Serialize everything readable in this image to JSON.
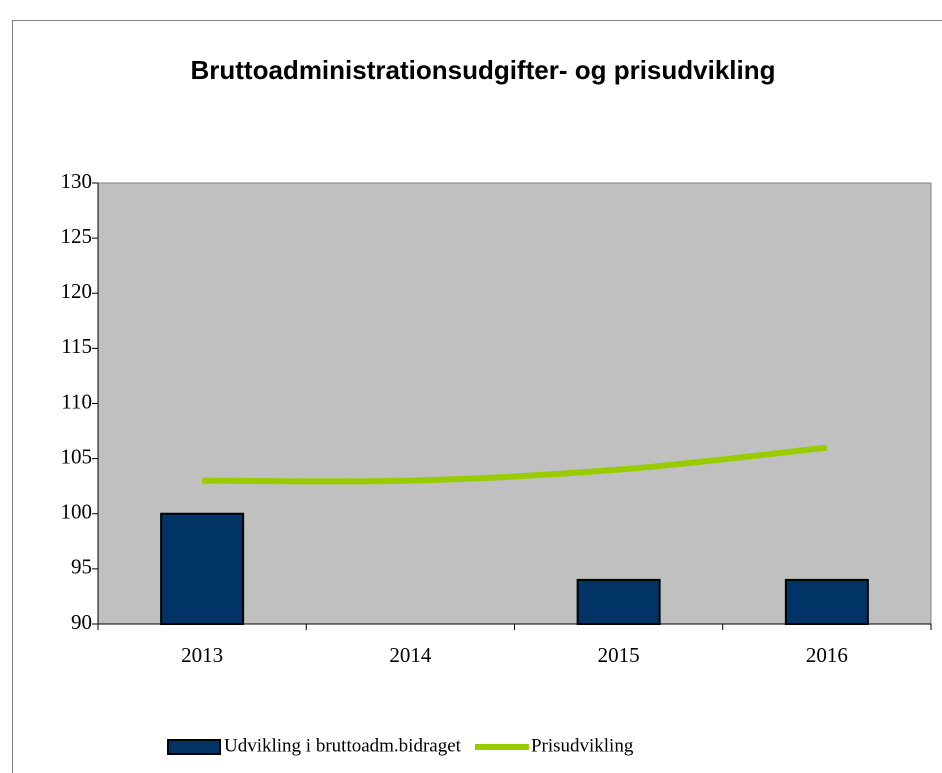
{
  "chart_data": {
    "type": "bar",
    "title": "Bruttoadministrationsudgifter- og prisudvikling",
    "categories": [
      "2013",
      "2014",
      "2015",
      "2016"
    ],
    "series": [
      {
        "name": "Udvikling i bruttoadm.bidraget",
        "type": "bar",
        "color": "#003366",
        "values": [
          100,
          90,
          94,
          94
        ]
      },
      {
        "name": "Prisudvikling",
        "type": "line",
        "color": "#99cc00",
        "values": [
          103,
          103,
          104,
          106
        ]
      }
    ],
    "ylim": [
      90,
      130
    ],
    "yticks": [
      90,
      95,
      100,
      105,
      110,
      115,
      120,
      125,
      130
    ],
    "grid": false,
    "plot_background": "#c0c0c0",
    "legend": "bottom"
  }
}
